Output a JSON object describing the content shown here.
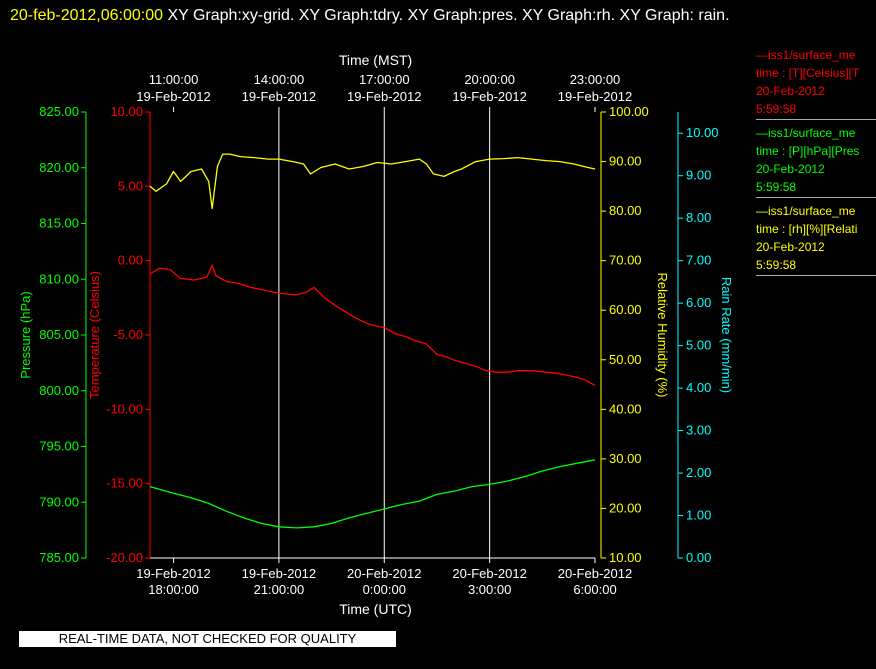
{
  "header": {
    "datetime": "20-feb-2012,06:00:00",
    "graphs_text": " XY Graph:xy-grid.  XY Graph:tdry.  XY Graph:pres.  XY Graph:rh.  XY Graph: rain."
  },
  "legend": [
    {
      "line1": "—iss1/surface_me",
      "line2": "time : [T][Celsius][T",
      "line3": "20-Feb-2012",
      "line4": "5:59:58",
      "color": "#ff0000"
    },
    {
      "line1": "—iss1/surface_me",
      "line2": "time : [P][hPa][Pres",
      "line3": "20-Feb-2012",
      "line4": "5:59:58",
      "color": "#00ff00"
    },
    {
      "line1": "—iss1/surface_me",
      "line2": "time : [rh][%][Relati",
      "line3": "20-Feb-2012",
      "line4": "5:59:58",
      "color": "#ffff00"
    }
  ],
  "quality_notice": "REAL-TIME DATA, NOT CHECKED FOR QUALITY",
  "chart_data": {
    "type": "line",
    "title": "",
    "x_top_label": "Time (MST)",
    "x_bottom_label": "Time (UTC)",
    "x_range_utc_hours": [
      17.33,
      30.0
    ],
    "x_ticks_utc": [
      {
        "hour": 18,
        "line1": "19-Feb-2012",
        "line2": "18:00:00"
      },
      {
        "hour": 21,
        "line1": "19-Feb-2012",
        "line2": "21:00:00"
      },
      {
        "hour": 24,
        "line1": "20-Feb-2012",
        "line2": "0:00:00"
      },
      {
        "hour": 27,
        "line1": "20-Feb-2012",
        "line2": "3:00:00"
      },
      {
        "hour": 30,
        "line1": "20-Feb-2012",
        "line2": "6:00:00"
      }
    ],
    "x_ticks_mst": [
      {
        "hour": 18,
        "line1": "11:00:00",
        "line2": "19-Feb-2012"
      },
      {
        "hour": 21,
        "line1": "14:00:00",
        "line2": "19-Feb-2012"
      },
      {
        "hour": 24,
        "line1": "17:00:00",
        "line2": "19-Feb-2012"
      },
      {
        "hour": 27,
        "line1": "20:00:00",
        "line2": "19-Feb-2012"
      },
      {
        "hour": 30,
        "line1": "23:00:00",
        "line2": "19-Feb-2012"
      }
    ],
    "grid": true,
    "axes": {
      "pressure": {
        "label": "Pressure (hPa)",
        "range": [
          785,
          825
        ],
        "ticks": [
          "785.00",
          "790.00",
          "795.00",
          "800.00",
          "805.00",
          "810.00",
          "815.00",
          "820.00",
          "825.00"
        ],
        "color": "#00ff00"
      },
      "temperature": {
        "label": "Temperature (Celsius)",
        "range": [
          -20,
          10
        ],
        "ticks": [
          "-20.00",
          "-15.00",
          "-10.00",
          "-5.00",
          "0.00",
          "5.00",
          "10.00"
        ],
        "color": "#ff0000"
      },
      "humidity": {
        "label": "Relative Humidity (%)",
        "range": [
          10,
          100
        ],
        "ticks": [
          "10.00",
          "20.00",
          "30.00",
          "40.00",
          "50.00",
          "60.00",
          "70.00",
          "80.00",
          "90.00",
          "100.00"
        ],
        "color": "#ffff00"
      },
      "rain": {
        "label": "Rain Rate (mm/min)",
        "range": [
          0,
          10.5
        ],
        "ticks": [
          "0.00",
          "1.00",
          "2.00",
          "3.00",
          "4.00",
          "5.00",
          "6.00",
          "7.00",
          "8.00",
          "9.00",
          "10.00"
        ],
        "color": "#00ffff"
      }
    },
    "series": [
      {
        "name": "Temperature",
        "axis": "temperature",
        "color": "#ff0000",
        "x": [
          17.33,
          17.6,
          17.9,
          18.2,
          18.6,
          18.95,
          19.1,
          19.2,
          19.5,
          19.8,
          20.2,
          20.6,
          21.0,
          21.5,
          21.8,
          22.0,
          22.3,
          22.6,
          23.0,
          23.3,
          23.6,
          24.0,
          24.3,
          24.6,
          24.9,
          25.2,
          25.5,
          25.8,
          26.0,
          26.3,
          26.6,
          26.9,
          27.2,
          27.5,
          27.8,
          28.2,
          28.6,
          29.0,
          29.4,
          29.7,
          30.0
        ],
        "y": [
          -0.9,
          -0.5,
          -0.6,
          -1.2,
          -1.3,
          -1.1,
          -0.3,
          -1.0,
          -1.4,
          -1.5,
          -1.8,
          -2.0,
          -2.2,
          -2.3,
          -2.1,
          -1.8,
          -2.5,
          -3.0,
          -3.6,
          -4.0,
          -4.3,
          -4.5,
          -4.9,
          -5.1,
          -5.4,
          -5.6,
          -6.3,
          -6.5,
          -6.7,
          -6.9,
          -7.1,
          -7.4,
          -7.5,
          -7.5,
          -7.4,
          -7.4,
          -7.5,
          -7.6,
          -7.8,
          -8.0,
          -8.4
        ]
      },
      {
        "name": "Pressure",
        "axis": "pressure",
        "color": "#00ff00",
        "x": [
          17.33,
          18.0,
          18.5,
          19.0,
          19.5,
          20.0,
          20.5,
          21.0,
          21.5,
          22.0,
          22.5,
          23.0,
          23.5,
          24.0,
          24.5,
          25.0,
          25.5,
          26.0,
          26.5,
          27.0,
          27.5,
          28.0,
          28.5,
          29.0,
          29.5,
          30.0
        ],
        "y": [
          791.4,
          790.8,
          790.4,
          789.9,
          789.2,
          788.6,
          788.1,
          787.8,
          787.7,
          787.8,
          788.1,
          788.6,
          789.0,
          789.4,
          789.8,
          790.1,
          790.7,
          791.0,
          791.4,
          791.6,
          791.9,
          792.3,
          792.8,
          793.2,
          793.5,
          793.8
        ]
      },
      {
        "name": "Relative Humidity",
        "axis": "humidity",
        "color": "#ffff00",
        "x": [
          17.33,
          17.5,
          17.8,
          18.0,
          18.2,
          18.5,
          18.8,
          19.0,
          19.1,
          19.25,
          19.4,
          19.6,
          19.9,
          20.3,
          20.7,
          21.0,
          21.4,
          21.7,
          21.9,
          22.2,
          22.6,
          23.0,
          23.4,
          23.8,
          24.2,
          24.6,
          25.0,
          25.2,
          25.4,
          25.7,
          26.0,
          26.2,
          26.6,
          27.0,
          27.4,
          27.8,
          28.2,
          28.6,
          29.0,
          29.4,
          29.8,
          30.0
        ],
        "y": [
          85.0,
          84.0,
          85.5,
          88.0,
          86.0,
          88.0,
          88.5,
          86.0,
          80.5,
          89.0,
          91.5,
          91.5,
          91.0,
          90.8,
          90.5,
          90.5,
          90.0,
          89.5,
          87.5,
          88.8,
          89.5,
          88.5,
          89.0,
          89.8,
          89.5,
          90.0,
          90.5,
          89.5,
          87.5,
          87.0,
          88.0,
          88.5,
          90.0,
          90.5,
          90.6,
          90.8,
          90.5,
          90.2,
          90.0,
          89.5,
          88.8,
          88.5
        ]
      },
      {
        "name": "Rain Rate",
        "axis": "rain",
        "color": "#00ffff",
        "x": [],
        "y": []
      }
    ]
  }
}
